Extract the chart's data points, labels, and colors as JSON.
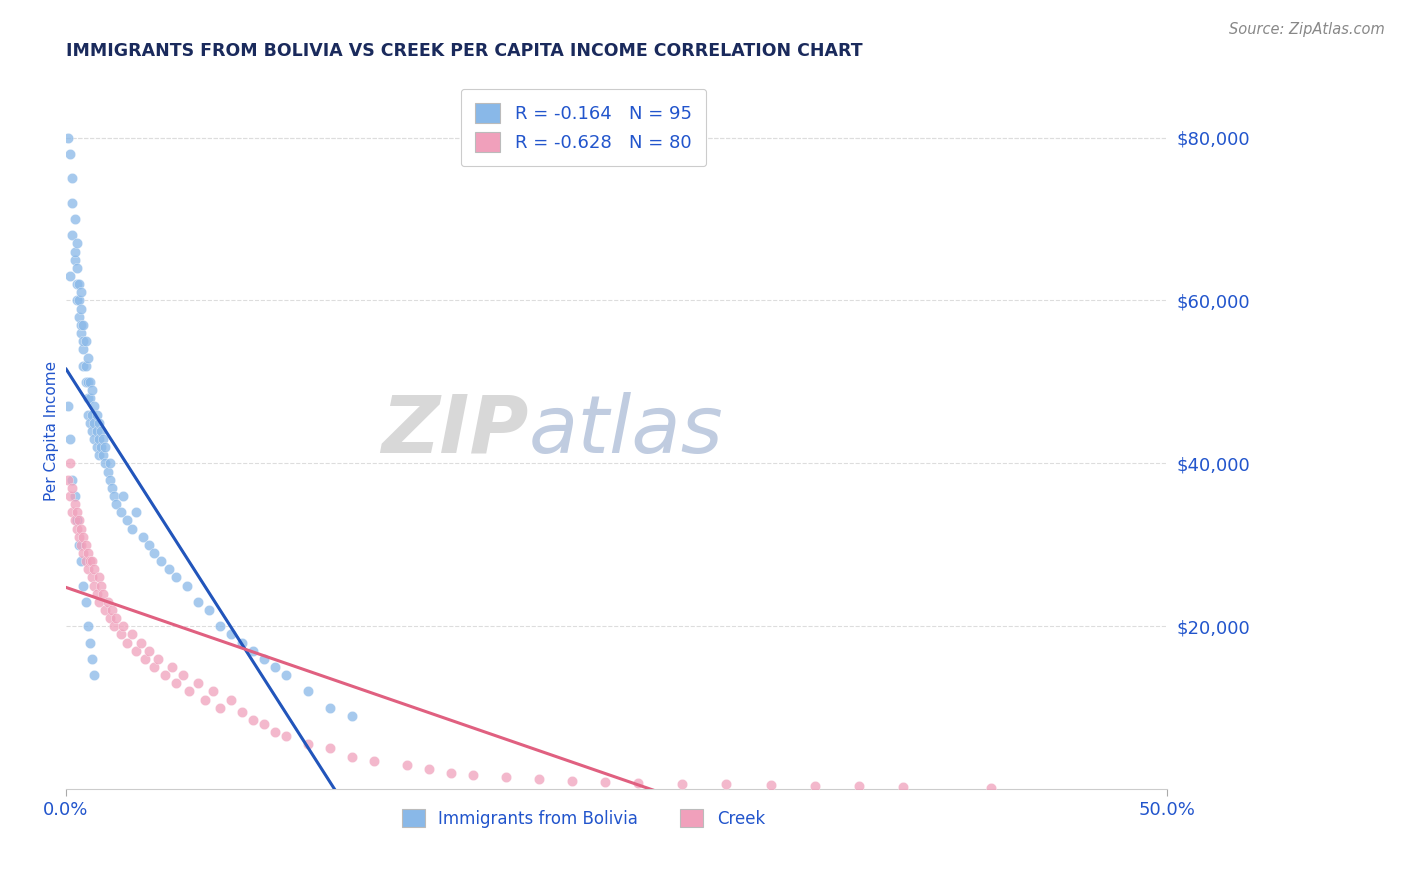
{
  "title": "IMMIGRANTS FROM BOLIVIA VS CREEK PER CAPITA INCOME CORRELATION CHART",
  "source": "Source: ZipAtlas.com",
  "ylabel": "Per Capita Income",
  "ytick_labels": [
    "$80,000",
    "$60,000",
    "$40,000",
    "$20,000"
  ],
  "ytick_values": [
    80000,
    60000,
    40000,
    20000
  ],
  "xlim": [
    0.0,
    0.5
  ],
  "ylim": [
    0,
    88000
  ],
  "blue_R": -0.164,
  "blue_N": 95,
  "pink_R": -0.628,
  "pink_N": 80,
  "blue_color": "#89b8e8",
  "pink_color": "#f0a0bb",
  "blue_line_color": "#2255bb",
  "pink_line_color": "#e06080",
  "dashed_line_color": "#99bbdd",
  "legend_label_blue": "Immigrants from Bolivia",
  "legend_label_pink": "Creek",
  "watermark_zip": "ZIP",
  "watermark_atlas": "atlas",
  "title_color": "#1a2a5c",
  "axis_label_color": "#2255cc",
  "background_color": "#ffffff",
  "blue_scatter_x": [
    0.001,
    0.002,
    0.002,
    0.003,
    0.003,
    0.003,
    0.004,
    0.004,
    0.004,
    0.005,
    0.005,
    0.005,
    0.005,
    0.006,
    0.006,
    0.006,
    0.007,
    0.007,
    0.007,
    0.007,
    0.008,
    0.008,
    0.008,
    0.008,
    0.009,
    0.009,
    0.009,
    0.01,
    0.01,
    0.01,
    0.01,
    0.011,
    0.011,
    0.011,
    0.012,
    0.012,
    0.012,
    0.013,
    0.013,
    0.013,
    0.014,
    0.014,
    0.014,
    0.015,
    0.015,
    0.015,
    0.016,
    0.016,
    0.017,
    0.017,
    0.018,
    0.018,
    0.019,
    0.02,
    0.02,
    0.021,
    0.022,
    0.023,
    0.025,
    0.026,
    0.028,
    0.03,
    0.032,
    0.035,
    0.038,
    0.04,
    0.043,
    0.047,
    0.05,
    0.055,
    0.06,
    0.065,
    0.07,
    0.075,
    0.08,
    0.085,
    0.09,
    0.095,
    0.1,
    0.11,
    0.12,
    0.13,
    0.001,
    0.002,
    0.003,
    0.004,
    0.005,
    0.006,
    0.007,
    0.008,
    0.009,
    0.01,
    0.011,
    0.012,
    0.013
  ],
  "blue_scatter_y": [
    80000,
    63000,
    78000,
    68000,
    72000,
    75000,
    65000,
    70000,
    66000,
    60000,
    64000,
    62000,
    67000,
    58000,
    62000,
    60000,
    56000,
    59000,
    57000,
    61000,
    54000,
    57000,
    55000,
    52000,
    52000,
    55000,
    50000,
    50000,
    48000,
    53000,
    46000,
    48000,
    50000,
    45000,
    46000,
    49000,
    44000,
    45000,
    47000,
    43000,
    44000,
    46000,
    42000,
    43000,
    45000,
    41000,
    42000,
    44000,
    41000,
    43000,
    40000,
    42000,
    39000,
    38000,
    40000,
    37000,
    36000,
    35000,
    34000,
    36000,
    33000,
    32000,
    34000,
    31000,
    30000,
    29000,
    28000,
    27000,
    26000,
    25000,
    23000,
    22000,
    20000,
    19000,
    18000,
    17000,
    16000,
    15000,
    14000,
    12000,
    10000,
    9000,
    47000,
    43000,
    38000,
    36000,
    33000,
    30000,
    28000,
    25000,
    23000,
    20000,
    18000,
    16000,
    14000
  ],
  "pink_scatter_x": [
    0.001,
    0.002,
    0.002,
    0.003,
    0.003,
    0.004,
    0.004,
    0.005,
    0.005,
    0.006,
    0.006,
    0.007,
    0.007,
    0.008,
    0.008,
    0.009,
    0.009,
    0.01,
    0.01,
    0.011,
    0.012,
    0.012,
    0.013,
    0.013,
    0.014,
    0.015,
    0.015,
    0.016,
    0.017,
    0.018,
    0.019,
    0.02,
    0.021,
    0.022,
    0.023,
    0.025,
    0.026,
    0.028,
    0.03,
    0.032,
    0.034,
    0.036,
    0.038,
    0.04,
    0.042,
    0.045,
    0.048,
    0.05,
    0.053,
    0.056,
    0.06,
    0.063,
    0.067,
    0.07,
    0.075,
    0.08,
    0.085,
    0.09,
    0.095,
    0.1,
    0.11,
    0.12,
    0.13,
    0.14,
    0.155,
    0.165,
    0.175,
    0.185,
    0.2,
    0.215,
    0.23,
    0.245,
    0.26,
    0.28,
    0.3,
    0.32,
    0.34,
    0.36,
    0.38,
    0.42
  ],
  "pink_scatter_y": [
    38000,
    36000,
    40000,
    34000,
    37000,
    33000,
    35000,
    32000,
    34000,
    31000,
    33000,
    30000,
    32000,
    29000,
    31000,
    28000,
    30000,
    27000,
    29000,
    28000,
    26000,
    28000,
    25000,
    27000,
    24000,
    26000,
    23000,
    25000,
    24000,
    22000,
    23000,
    21000,
    22000,
    20000,
    21000,
    19000,
    20000,
    18000,
    19000,
    17000,
    18000,
    16000,
    17000,
    15000,
    16000,
    14000,
    15000,
    13000,
    14000,
    12000,
    13000,
    11000,
    12000,
    10000,
    11000,
    9500,
    8500,
    8000,
    7000,
    6500,
    5500,
    5000,
    4000,
    3500,
    3000,
    2500,
    2000,
    1800,
    1500,
    1200,
    1000,
    900,
    800,
    700,
    600,
    500,
    400,
    350,
    300,
    200
  ]
}
